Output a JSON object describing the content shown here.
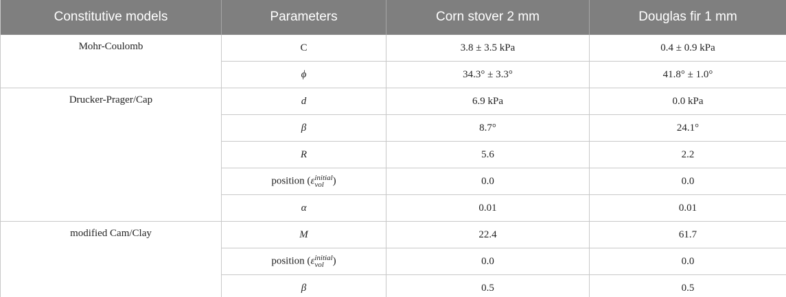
{
  "table": {
    "header": [
      "Constitutive models",
      "Parameters",
      "Corn stover 2 mm",
      "Douglas fir 1 mm"
    ],
    "groups": [
      {
        "model": "Mohr-Coulomb",
        "rows": [
          {
            "param": {
              "text": "C"
            },
            "values": [
              "3.8 ± 3.5 kPa",
              "0.4 ± 0.9 kPa"
            ]
          },
          {
            "param": {
              "symbol": "ϕ"
            },
            "values": [
              "34.3° ± 3.3°",
              "41.8° ± 1.0°"
            ]
          }
        ]
      },
      {
        "model": "Drucker-Prager/Cap",
        "rows": [
          {
            "param": {
              "symbol": "d"
            },
            "values": [
              "6.9 kPa",
              "0.0 kPa"
            ]
          },
          {
            "param": {
              "symbol": "β"
            },
            "values": [
              "8.7°",
              "24.1°"
            ]
          },
          {
            "param": {
              "symbol": "R"
            },
            "values": [
              "5.6",
              "2.2"
            ]
          },
          {
            "param": {
              "prefix": "position (",
              "symbol": "ε",
              "sup": "initial",
              "sub": "vol",
              "suffix": ")"
            },
            "values": [
              "0.0",
              "0.0"
            ]
          },
          {
            "param": {
              "symbol": "α"
            },
            "values": [
              "0.01",
              "0.01"
            ]
          }
        ]
      },
      {
        "model": "modified Cam/Clay",
        "rows": [
          {
            "param": {
              "symbol": "M"
            },
            "values": [
              "22.4",
              "61.7"
            ]
          },
          {
            "param": {
              "prefix": "position (",
              "symbol": "ε",
              "sup": "initial",
              "sub": "vol",
              "suffix": ")"
            },
            "values": [
              "0.0",
              "0.0"
            ]
          },
          {
            "param": {
              "symbol": "β"
            },
            "values": [
              "0.5",
              "0.5"
            ]
          }
        ]
      }
    ]
  }
}
